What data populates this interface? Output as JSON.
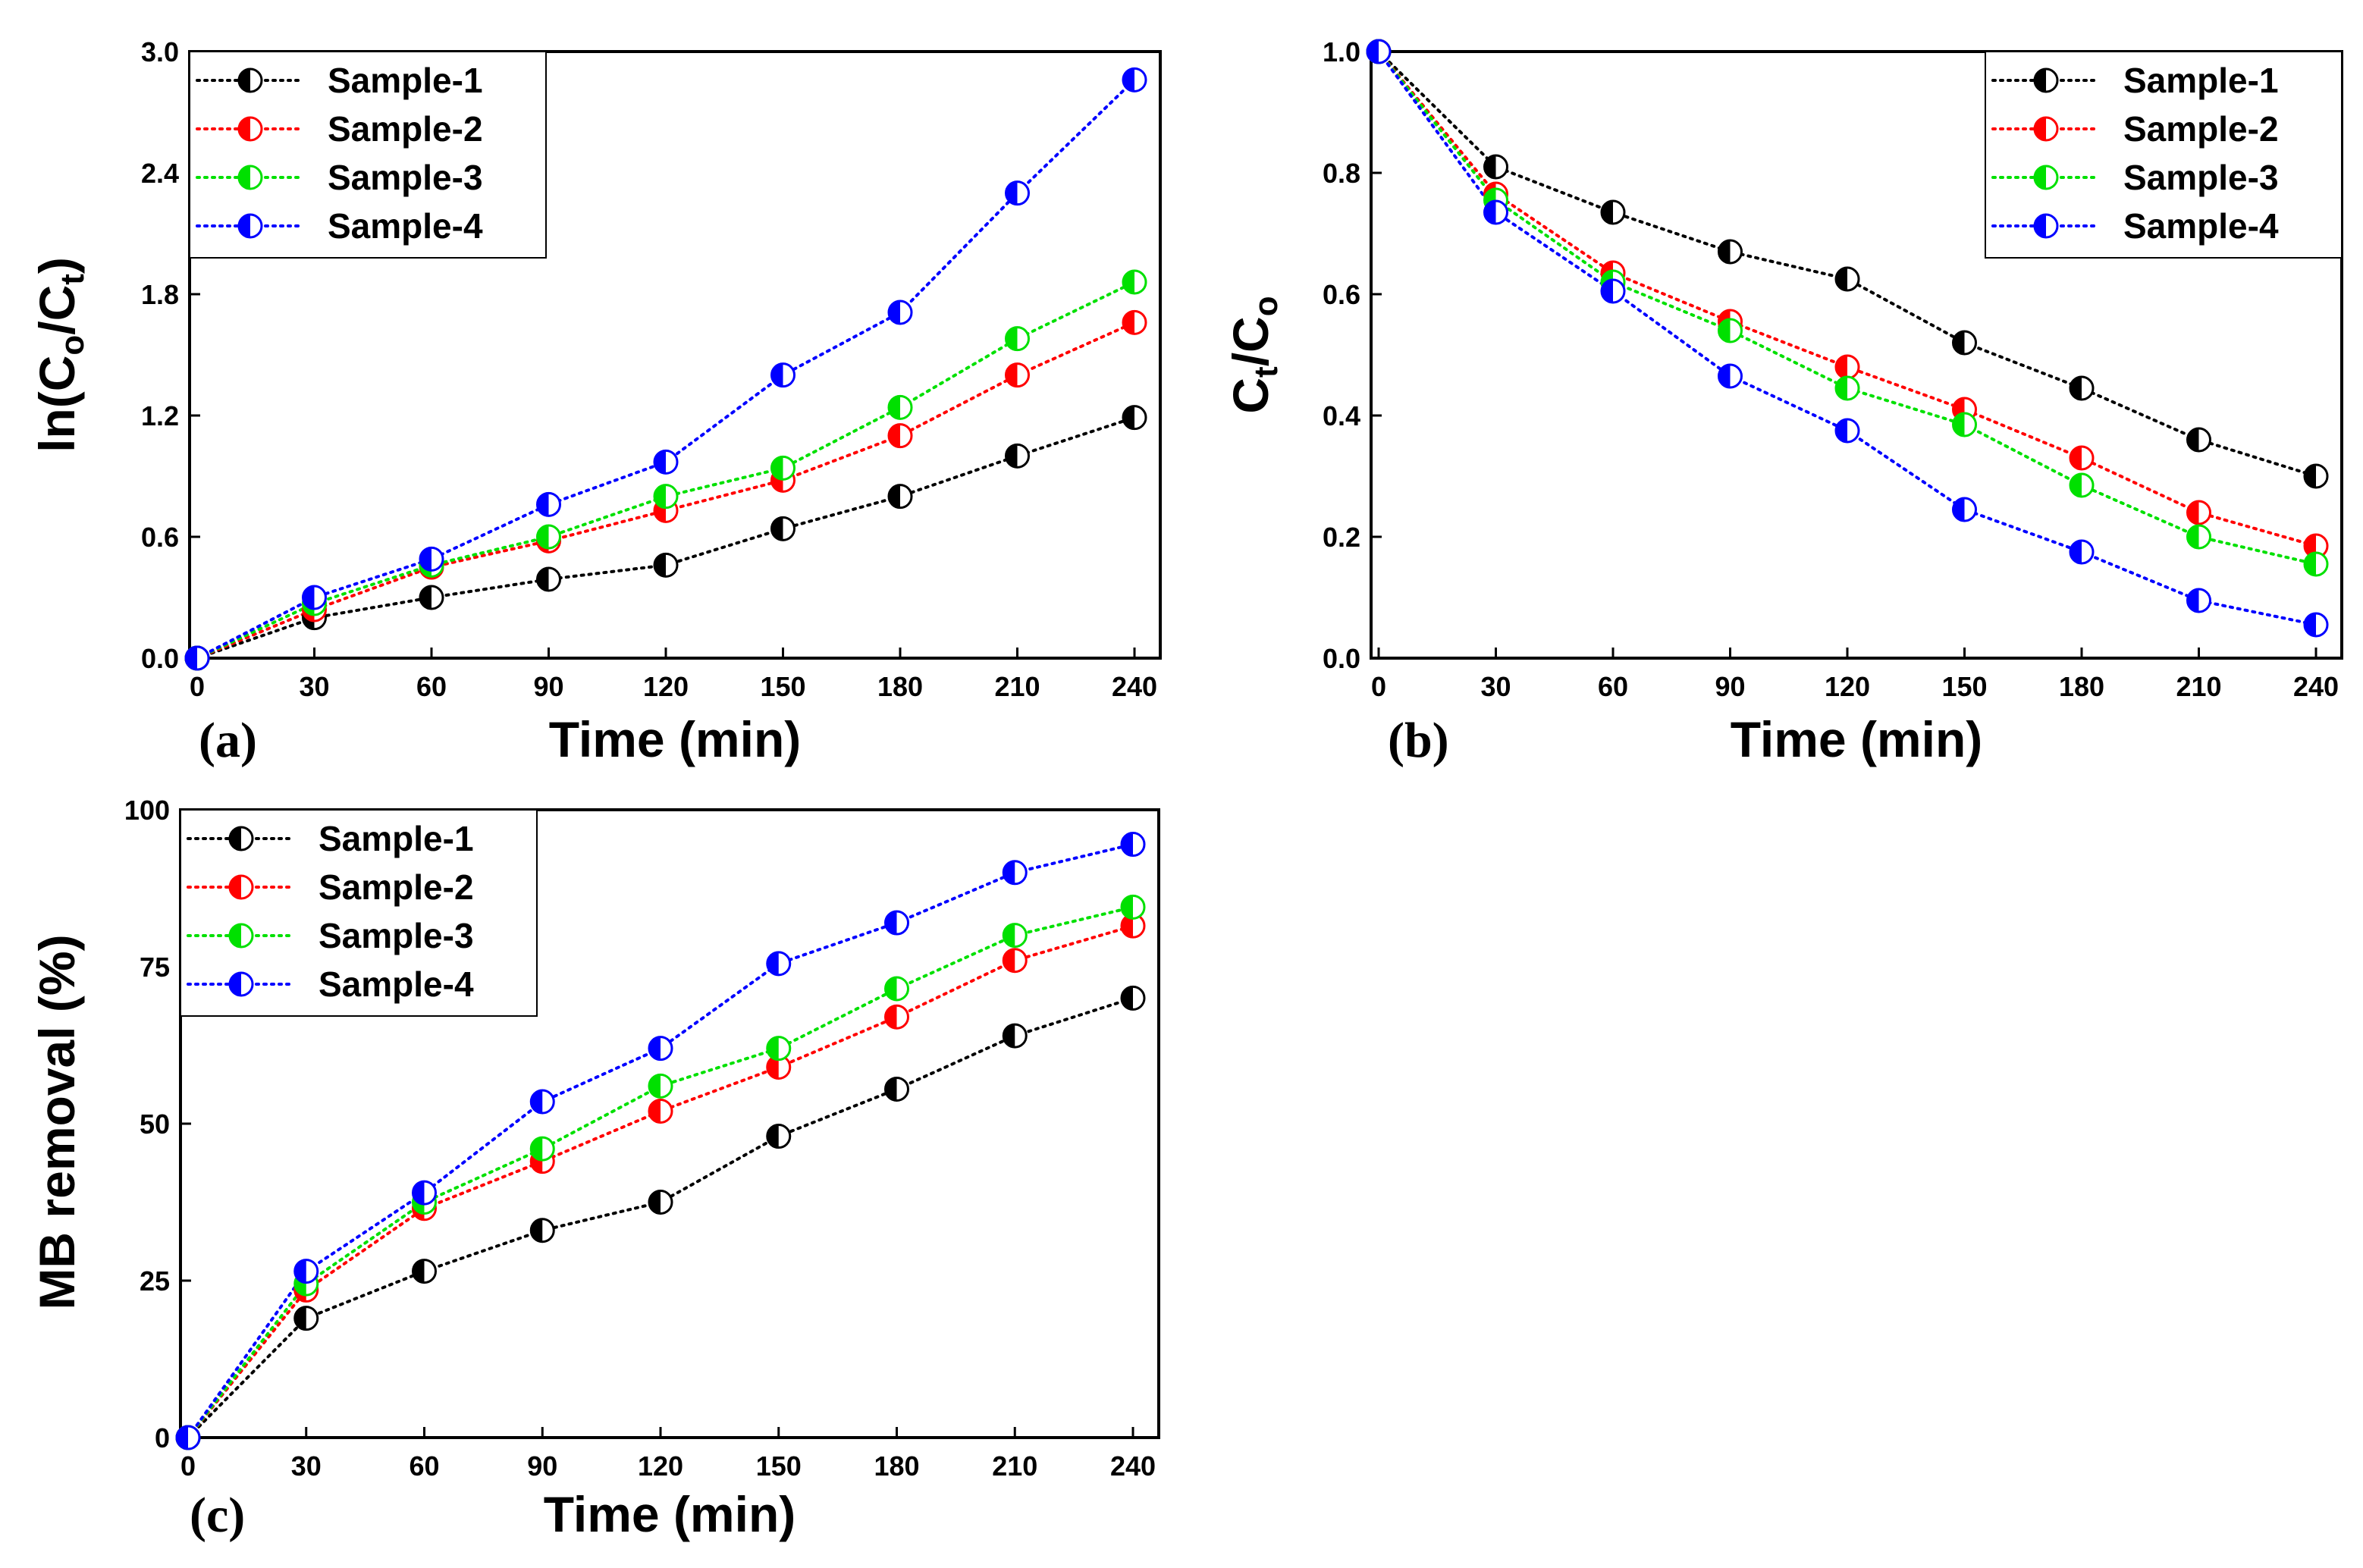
{
  "chart_data": [
    {
      "type": "line",
      "panel_label": "(a)",
      "xlabel": "Time (min)",
      "ylabel": "ln(Co/Ct)",
      "ylabel_parts": [
        "ln(C",
        "o",
        "/C",
        "t",
        ")"
      ],
      "xlim": [
        0,
        240
      ],
      "ylim": [
        0,
        3.0
      ],
      "xticks": [
        "0",
        "30",
        "60",
        "90",
        "120",
        "150",
        "180",
        "210",
        "240"
      ],
      "yticks": [
        "0.0",
        "0.6",
        "1.2",
        "1.8",
        "2.4",
        "3.0"
      ],
      "legend_position": "top-left",
      "x": [
        0,
        30,
        60,
        90,
        120,
        150,
        180,
        210,
        240
      ],
      "series": [
        {
          "name": "Sample-1",
          "color": "#000000",
          "values": [
            0.0,
            0.2,
            0.3,
            0.39,
            0.46,
            0.64,
            0.8,
            1.0,
            1.19
          ]
        },
        {
          "name": "Sample-2",
          "color": "#ff0000",
          "values": [
            0.0,
            0.24,
            0.45,
            0.58,
            0.73,
            0.88,
            1.1,
            1.4,
            1.66
          ]
        },
        {
          "name": "Sample-3",
          "color": "#00e000",
          "values": [
            0.0,
            0.27,
            0.46,
            0.6,
            0.8,
            0.94,
            1.24,
            1.58,
            1.86
          ]
        },
        {
          "name": "Sample-4",
          "color": "#0000ff",
          "values": [
            0.0,
            0.3,
            0.49,
            0.76,
            0.97,
            1.4,
            1.71,
            2.3,
            2.86
          ]
        }
      ]
    },
    {
      "type": "line",
      "panel_label": "(b)",
      "xlabel": "Time (min)",
      "ylabel": "Ct/Co",
      "ylabel_parts": [
        "C",
        "t",
        "/C",
        "o",
        ""
      ],
      "xlim": [
        0,
        240
      ],
      "ylim": [
        0,
        1.0
      ],
      "xticks": [
        "0",
        "30",
        "60",
        "90",
        "120",
        "150",
        "180",
        "210",
        "240"
      ],
      "yticks": [
        "0.0",
        "0.2",
        "0.4",
        "0.6",
        "0.8",
        "1.0"
      ],
      "legend_position": "top-right",
      "x": [
        0,
        30,
        60,
        90,
        120,
        150,
        180,
        210,
        240
      ],
      "series": [
        {
          "name": "Sample-1",
          "color": "#000000",
          "values": [
            1.0,
            0.81,
            0.735,
            0.67,
            0.625,
            0.52,
            0.445,
            0.36,
            0.3
          ]
        },
        {
          "name": "Sample-2",
          "color": "#ff0000",
          "values": [
            1.0,
            0.765,
            0.635,
            0.555,
            0.48,
            0.41,
            0.33,
            0.24,
            0.185
          ]
        },
        {
          "name": "Sample-3",
          "color": "#00e000",
          "values": [
            1.0,
            0.755,
            0.62,
            0.54,
            0.445,
            0.385,
            0.285,
            0.2,
            0.155
          ]
        },
        {
          "name": "Sample-4",
          "color": "#0000ff",
          "values": [
            1.0,
            0.735,
            0.605,
            0.465,
            0.375,
            0.245,
            0.175,
            0.095,
            0.055
          ]
        }
      ]
    },
    {
      "type": "line",
      "panel_label": "(c)",
      "xlabel": "Time (min)",
      "ylabel": "MB removal (%)",
      "ylabel_parts": [
        "MB removal (%)",
        "",
        "",
        "",
        ""
      ],
      "xlim": [
        0,
        240
      ],
      "ylim": [
        0,
        100
      ],
      "xticks": [
        "0",
        "30",
        "60",
        "90",
        "120",
        "150",
        "180",
        "210",
        "240"
      ],
      "yticks": [
        "0",
        "25",
        "50",
        "75",
        "100"
      ],
      "legend_position": "top-left",
      "x": [
        0,
        30,
        60,
        90,
        120,
        150,
        180,
        210,
        240
      ],
      "series": [
        {
          "name": "Sample-1",
          "color": "#000000",
          "values": [
            0,
            19,
            26.5,
            33,
            37.5,
            48,
            55.5,
            64,
            70
          ]
        },
        {
          "name": "Sample-2",
          "color": "#ff0000",
          "values": [
            0,
            23.5,
            36.5,
            44,
            52,
            59,
            67,
            76,
            81.5
          ]
        },
        {
          "name": "Sample-3",
          "color": "#00e000",
          "values": [
            0,
            24.5,
            37.5,
            46,
            56,
            62,
            71.5,
            80,
            84.5
          ]
        },
        {
          "name": "Sample-4",
          "color": "#0000ff",
          "values": [
            0,
            26.5,
            39,
            53.5,
            62,
            75.5,
            82,
            90,
            94.5
          ]
        }
      ]
    }
  ]
}
